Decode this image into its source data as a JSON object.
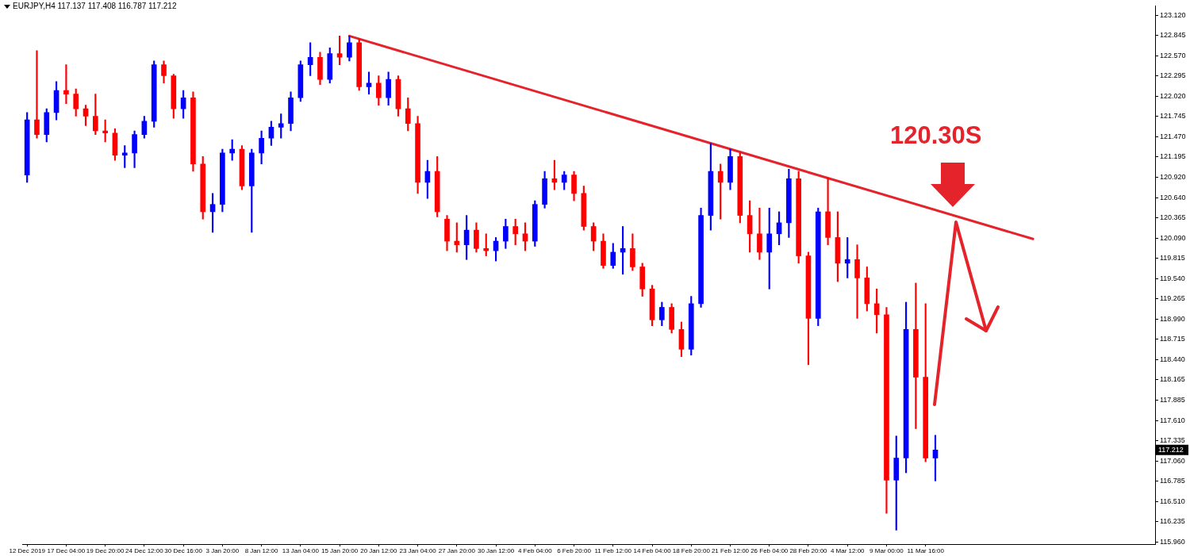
{
  "chart_data": {
    "type": "candlestick",
    "title": "EURJPY,H4 117.137 117.408 116.787 117.212",
    "categories": [
      "12 Dec 2019",
      null,
      null,
      null,
      "17 Dec 04:00",
      null,
      null,
      null,
      "19 Dec 20:00",
      null,
      null,
      null,
      "24 Dec 12:00",
      null,
      null,
      null,
      "30 Dec 16:00",
      null,
      null,
      null,
      "3 Jan 20:00",
      null,
      null,
      null,
      "8 Jan 12:00",
      null,
      null,
      null,
      "13 Jan 04:00",
      null,
      null,
      null,
      "15 Jan 20:00",
      null,
      null,
      null,
      "20 Jan 12:00",
      null,
      null,
      null,
      "23 Jan 04:00",
      null,
      null,
      null,
      "27 Jan 20:00",
      null,
      null,
      null,
      "30 Jan 12:00",
      null,
      null,
      null,
      "4 Feb 04:00",
      null,
      null,
      null,
      "6 Feb 20:00",
      null,
      null,
      null,
      "11 Feb 12:00",
      null,
      null,
      null,
      "14 Feb 04:00",
      null,
      null,
      null,
      "18 Feb 20:00",
      null,
      null,
      null,
      "21 Feb 12:00",
      null,
      null,
      null,
      "26 Feb 04:00",
      null,
      null,
      null,
      "28 Feb 20:00",
      null,
      null,
      null,
      "4 Mar 12:00",
      null,
      null,
      null,
      "9 Mar 00:00",
      null,
      null,
      null,
      "11 Mar 16:00",
      null,
      null,
      null,
      null,
      null,
      null,
      null,
      null,
      null,
      null,
      null,
      null,
      null,
      null,
      null,
      null,
      null,
      null,
      null,
      null,
      null,
      null,
      null
    ],
    "series": [
      {
        "ohlc": [
          [
            120.95,
            121.8,
            120.85,
            121.7
          ],
          [
            121.7,
            122.64,
            121.45,
            121.5
          ],
          [
            121.5,
            121.85,
            121.4,
            121.8
          ],
          [
            121.8,
            122.22,
            121.7,
            122.1
          ],
          [
            122.1,
            122.45,
            121.92,
            122.05
          ],
          [
            122.05,
            122.12,
            121.75,
            121.85
          ],
          [
            121.85,
            121.9,
            121.62,
            121.75
          ],
          [
            121.75,
            122.05,
            121.5,
            121.55
          ],
          [
            121.55,
            121.7,
            121.4,
            121.52
          ],
          [
            121.52,
            121.58,
            121.15,
            121.22
          ],
          [
            121.22,
            121.35,
            121.05,
            121.25
          ],
          [
            121.25,
            121.55,
            121.05,
            121.5
          ],
          [
            121.5,
            121.75,
            121.45,
            121.68
          ],
          [
            121.68,
            122.5,
            121.6,
            122.45
          ],
          [
            122.45,
            122.5,
            122.2,
            122.3
          ],
          [
            122.3,
            122.32,
            121.72,
            121.85
          ],
          [
            121.85,
            122.1,
            121.72,
            122.0
          ],
          [
            122.0,
            122.08,
            121.0,
            121.1
          ],
          [
            121.1,
            121.2,
            120.35,
            120.45
          ],
          [
            120.45,
            120.7,
            120.17,
            120.55
          ],
          [
            120.55,
            121.3,
            120.45,
            121.25
          ],
          [
            121.25,
            121.43,
            121.15,
            121.3
          ],
          [
            121.3,
            121.35,
            120.75,
            120.8
          ],
          [
            120.8,
            121.3,
            120.17,
            121.25
          ],
          [
            121.25,
            121.55,
            121.1,
            121.45
          ],
          [
            121.45,
            121.68,
            121.35,
            121.6
          ],
          [
            121.6,
            121.78,
            121.45,
            121.65
          ],
          [
            121.65,
            122.08,
            121.55,
            122.0
          ],
          [
            122.0,
            122.5,
            121.95,
            122.45
          ],
          [
            122.45,
            122.75,
            122.3,
            122.55
          ],
          [
            122.55,
            122.62,
            122.18,
            122.25
          ],
          [
            122.25,
            122.68,
            122.2,
            122.6
          ],
          [
            122.6,
            122.84,
            122.45,
            122.55
          ],
          [
            122.55,
            122.84,
            122.5,
            122.75
          ],
          [
            122.75,
            122.8,
            122.1,
            122.15
          ],
          [
            122.15,
            122.35,
            122.05,
            122.2
          ],
          [
            122.2,
            122.3,
            121.9,
            122.0
          ],
          [
            122.0,
            122.35,
            121.9,
            122.25
          ],
          [
            122.25,
            122.3,
            121.75,
            121.85
          ],
          [
            121.85,
            122.0,
            121.55,
            121.65
          ],
          [
            121.65,
            121.75,
            120.7,
            120.85
          ],
          [
            120.85,
            121.15,
            120.63,
            121.0
          ],
          [
            121.0,
            121.2,
            120.38,
            120.45
          ],
          [
            120.35,
            120.4,
            119.92,
            120.05
          ],
          [
            120.05,
            120.3,
            119.9,
            120.0
          ],
          [
            120.0,
            120.4,
            119.8,
            120.2
          ],
          [
            120.2,
            120.3,
            119.9,
            119.95
          ],
          [
            119.95,
            120.15,
            119.85,
            119.92
          ],
          [
            119.92,
            120.1,
            119.78,
            120.05
          ],
          [
            120.05,
            120.35,
            119.95,
            120.25
          ],
          [
            120.25,
            120.35,
            120.0,
            120.15
          ],
          [
            120.15,
            120.3,
            119.92,
            120.05
          ],
          [
            120.05,
            120.6,
            119.98,
            120.55
          ],
          [
            120.55,
            121.0,
            120.5,
            120.9
          ],
          [
            120.9,
            121.15,
            120.75,
            120.85
          ],
          [
            120.85,
            121.0,
            120.75,
            120.95
          ],
          [
            120.95,
            121.0,
            120.6,
            120.7
          ],
          [
            120.7,
            120.8,
            120.2,
            120.25
          ],
          [
            120.25,
            120.3,
            119.92,
            120.05
          ],
          [
            120.05,
            120.15,
            119.68,
            119.72
          ],
          [
            119.72,
            120.02,
            119.68,
            119.9
          ],
          [
            119.9,
            120.25,
            119.6,
            119.95
          ],
          [
            119.95,
            120.15,
            119.65,
            119.7
          ],
          [
            119.7,
            119.75,
            119.3,
            119.4
          ],
          [
            119.4,
            119.45,
            118.9,
            118.98
          ],
          [
            118.98,
            119.22,
            118.9,
            119.15
          ],
          [
            119.15,
            119.2,
            118.8,
            118.85
          ],
          [
            118.85,
            118.95,
            118.48,
            118.58
          ],
          [
            118.58,
            119.3,
            118.5,
            119.2
          ],
          [
            119.2,
            120.5,
            119.15,
            120.4
          ],
          [
            120.4,
            121.38,
            120.2,
            121.0
          ],
          [
            121.0,
            121.1,
            120.35,
            120.85
          ],
          [
            120.85,
            121.3,
            120.75,
            121.2
          ],
          [
            121.2,
            121.25,
            120.3,
            120.4
          ],
          [
            120.4,
            120.6,
            119.9,
            120.15
          ],
          [
            120.15,
            120.5,
            119.8,
            119.9
          ],
          [
            119.9,
            120.5,
            119.4,
            120.15
          ],
          [
            120.15,
            120.45,
            120.0,
            120.3
          ],
          [
            120.3,
            121.03,
            120.1,
            120.9
          ],
          [
            120.9,
            121.0,
            119.75,
            119.85
          ],
          [
            119.85,
            119.9,
            118.37,
            119.0
          ],
          [
            119.0,
            120.5,
            118.9,
            120.45
          ],
          [
            120.45,
            120.91,
            120.0,
            120.1
          ],
          [
            120.1,
            120.45,
            119.5,
            119.75
          ],
          [
            119.75,
            120.1,
            119.55,
            119.8
          ],
          [
            119.8,
            120.0,
            119.0,
            119.55
          ],
          [
            119.55,
            119.7,
            119.1,
            119.2
          ],
          [
            119.2,
            119.4,
            118.8,
            119.05
          ],
          [
            119.05,
            119.15,
            116.35,
            116.8
          ],
          [
            116.8,
            117.4,
            116.12,
            117.1
          ],
          [
            117.1,
            119.22,
            116.9,
            118.85
          ],
          [
            118.85,
            119.48,
            117.5,
            118.2
          ],
          [
            118.2,
            119.2,
            117.05,
            117.1
          ],
          [
            117.1,
            117.41,
            116.79,
            117.21
          ],
          null,
          null,
          null,
          null,
          null,
          null,
          null,
          null,
          null,
          null,
          null,
          null,
          null,
          null,
          null,
          null,
          null,
          null,
          null,
          null,
          null,
          null
        ],
        "colors": [
          "#0000ff",
          "#ff0000",
          "#0000ff",
          "#0000ff",
          "#ff0000",
          "#ff0000",
          "#ff0000",
          "#ff0000",
          "#ff0000",
          "#ff0000",
          "#0000ff",
          "#0000ff",
          "#0000ff",
          "#0000ff",
          "#ff0000",
          "#ff0000",
          "#0000ff",
          "#ff0000",
          "#ff0000",
          "#0000ff",
          "#0000ff",
          "#0000ff",
          "#ff0000",
          "#0000ff",
          "#0000ff",
          "#0000ff",
          "#0000ff",
          "#0000ff",
          "#0000ff",
          "#0000ff",
          "#ff0000",
          "#0000ff",
          "#ff0000",
          "#0000ff",
          "#ff0000",
          "#0000ff",
          "#ff0000",
          "#0000ff",
          "#ff0000",
          "#ff0000",
          "#ff0000",
          "#0000ff",
          "#ff0000",
          "#ff0000",
          "#ff0000",
          "#0000ff",
          "#ff0000",
          "#ff0000",
          "#0000ff",
          "#0000ff",
          "#ff0000",
          "#ff0000",
          "#0000ff",
          "#0000ff",
          "#ff0000",
          "#0000ff",
          "#ff0000",
          "#ff0000",
          "#ff0000",
          "#ff0000",
          "#0000ff",
          "#0000ff",
          "#ff0000",
          "#ff0000",
          "#ff0000",
          "#0000ff",
          "#ff0000",
          "#ff0000",
          "#0000ff",
          "#0000ff",
          "#0000ff",
          "#ff0000",
          "#0000ff",
          "#ff0000",
          "#ff0000",
          "#ff0000",
          "#0000ff",
          "#0000ff",
          "#0000ff",
          "#ff0000",
          "#ff0000",
          "#0000ff",
          "#ff0000",
          "#ff0000",
          "#0000ff",
          "#ff0000",
          "#ff0000",
          "#ff0000",
          "#ff0000",
          "#0000ff",
          "#0000ff",
          "#ff0000",
          "#ff0000",
          "#0000ff",
          null,
          null,
          null,
          null,
          null,
          null,
          null,
          null,
          null,
          null,
          null,
          null,
          null,
          null,
          null,
          null,
          null,
          null,
          null,
          null,
          null,
          null
        ]
      },
      {
        "type": "line",
        "color": "#e4232b",
        "values": [
          null,
          null,
          null,
          null,
          null,
          null,
          null,
          null,
          null,
          null,
          null,
          null,
          null,
          null,
          null,
          null,
          null,
          null,
          null,
          null,
          null,
          null,
          null,
          null,
          null,
          null,
          null,
          null,
          null,
          null,
          null,
          null,
          null,
          122.84,
          null,
          null,
          null,
          null,
          null,
          null,
          null,
          null,
          null,
          null,
          null,
          null,
          null,
          null,
          null,
          null,
          null,
          null,
          null,
          null,
          null,
          null,
          null,
          null,
          null,
          null,
          null,
          null,
          null,
          null,
          null,
          null,
          null,
          null,
          null,
          null,
          null,
          null,
          null,
          null,
          null,
          null,
          null,
          null,
          null,
          null,
          null,
          null,
          null,
          null,
          null,
          null,
          null,
          null,
          null,
          null,
          null,
          null,
          null,
          null,
          null,
          null,
          null,
          null,
          null,
          null,
          null,
          null,
          null,
          120.08,
          null,
          null,
          null,
          null,
          null,
          null,
          null,
          null,
          null,
          null,
          null,
          null
        ]
      }
    ],
    "ylim": [
      115.93,
      123.25
    ],
    "yticks": [
      {
        "value": 115.96,
        "label": "115.960"
      },
      116.235,
      {
        "value": 116.51,
        "label": "116.510"
      },
      116.785,
      {
        "value": 117.06,
        "label": "117.060"
      },
      117.335,
      {
        "value": 117.61,
        "label": "117.610"
      },
      117.885,
      118.165,
      {
        "value": 118.44,
        "label": "118.440"
      },
      118.715,
      {
        "value": 118.99,
        "label": "118.990"
      },
      119.265,
      {
        "value": 119.54,
        "label": "119.540"
      },
      119.815,
      {
        "value": 120.09,
        "label": "120.090"
      },
      120.365,
      {
        "value": 120.64,
        "label": "120.640"
      },
      {
        "value": 120.92,
        "label": "120.920"
      },
      121.195,
      {
        "value": 121.47,
        "label": "121.470"
      },
      121.745,
      {
        "value": 122.02,
        "label": "122.020"
      },
      122.295,
      {
        "value": 122.57,
        "label": "122.570"
      },
      122.845,
      {
        "value": 123.12,
        "label": "123.120"
      }
    ],
    "annotations": [
      "120.30S",
      {
        "text": "117.212",
        "y": 117.212
      }
    ]
  }
}
